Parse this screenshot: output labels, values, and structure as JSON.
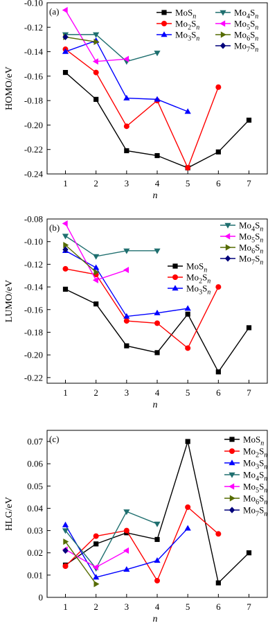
{
  "chart_data": [
    {
      "type": "line",
      "panel": "(a)",
      "ylabel": "HOMO/eV",
      "xlabel": "n",
      "ylim": [
        -0.24,
        -0.1
      ],
      "yticks": [
        -0.24,
        -0.22,
        -0.2,
        -0.18,
        -0.16,
        -0.14,
        -0.12,
        -0.1
      ],
      "xticks": [
        1,
        2,
        3,
        4,
        5,
        6,
        7
      ],
      "legend": "top-right",
      "series": [
        {
          "name": "MoSn",
          "label": "MoS",
          "sub": "n",
          "color": "#000000",
          "marker": "square",
          "x": [
            1,
            2,
            3,
            4,
            5,
            6,
            7
          ],
          "values": [
            -0.157,
            -0.179,
            -0.221,
            -0.225,
            -0.235,
            -0.222,
            -0.196
          ]
        },
        {
          "name": "Mo2Sn",
          "label": "Mo",
          "sub2": "2",
          "sub": "n",
          "color": "#ff0000",
          "marker": "circle",
          "x": [
            1,
            2,
            3,
            4,
            5,
            6
          ],
          "values": [
            -0.138,
            -0.157,
            -0.201,
            -0.18,
            -0.235,
            -0.169
          ]
        },
        {
          "name": "Mo3Sn",
          "label": "Mo",
          "sub2": "3",
          "sub": "n",
          "color": "#0000ff",
          "marker": "triangle-up",
          "x": [
            1,
            2,
            3,
            4,
            5
          ],
          "values": [
            -0.14,
            -0.131,
            -0.178,
            -0.179,
            -0.189
          ]
        },
        {
          "name": "Mo4Sn",
          "label": "Mo",
          "sub2": "4",
          "sub": "n",
          "color": "#1f6f6f",
          "marker": "triangle-down",
          "x": [
            1,
            2,
            3,
            4
          ],
          "values": [
            -0.126,
            -0.126,
            -0.148,
            -0.141
          ]
        },
        {
          "name": "Mo5Sn",
          "label": "Mo",
          "sub2": "5",
          "sub": "n",
          "color": "#ff00ff",
          "marker": "triangle-left",
          "x": [
            1,
            2,
            3
          ],
          "values": [
            -0.106,
            -0.148,
            -0.146
          ]
        },
        {
          "name": "Mo6Sn",
          "label": "Mo",
          "sub2": "6",
          "sub": "n",
          "color": "#556b00",
          "marker": "triangle-right",
          "x": [
            1,
            2
          ],
          "values": [
            -0.128,
            -0.132
          ]
        },
        {
          "name": "Mo7Sn",
          "label": "Mo",
          "sub2": "7",
          "sub": "n",
          "color": "#00007a",
          "marker": "diamond",
          "x": [
            1
          ],
          "values": [
            -0.128
          ]
        }
      ]
    },
    {
      "type": "line",
      "panel": "(b)",
      "ylabel": "LUMO/eV",
      "xlabel": "n",
      "ylim": [
        -0.225,
        -0.08
      ],
      "yticks": [
        -0.22,
        -0.2,
        -0.18,
        -0.16,
        -0.14,
        -0.12,
        -0.1,
        -0.08
      ],
      "xticks": [
        1,
        2,
        3,
        4,
        5,
        6,
        7
      ],
      "legend": "top-right and center",
      "series": [
        {
          "name": "MoSn",
          "label": "MoS",
          "sub": "n",
          "color": "#000000",
          "marker": "square",
          "x": [
            1,
            2,
            3,
            4,
            5,
            6,
            7
          ],
          "values": [
            -0.142,
            -0.155,
            -0.192,
            -0.198,
            -0.164,
            -0.215,
            -0.176
          ]
        },
        {
          "name": "Mo2Sn",
          "label": "Mo",
          "sub2": "2",
          "sub": "n",
          "color": "#ff0000",
          "marker": "circle",
          "x": [
            1,
            2,
            3,
            4,
            5,
            6
          ],
          "values": [
            -0.124,
            -0.129,
            -0.17,
            -0.172,
            -0.194,
            -0.14
          ]
        },
        {
          "name": "Mo3Sn",
          "label": "Mo",
          "sub2": "3",
          "sub": "n",
          "color": "#0000ff",
          "marker": "triangle-up",
          "x": [
            1,
            2,
            3,
            4,
            5
          ],
          "values": [
            -0.108,
            -0.123,
            -0.166,
            -0.163,
            -0.159
          ]
        },
        {
          "name": "Mo4Sn",
          "label": "Mo",
          "sub2": "4",
          "sub": "n",
          "color": "#1f6f6f",
          "marker": "triangle-down",
          "x": [
            1,
            2,
            3,
            4
          ],
          "values": [
            -0.095,
            -0.113,
            -0.108,
            -0.108
          ]
        },
        {
          "name": "Mo5Sn",
          "label": "Mo",
          "sub2": "5",
          "sub": "n",
          "color": "#ff00ff",
          "marker": "triangle-left",
          "x": [
            1,
            2,
            3
          ],
          "values": [
            -0.084,
            -0.134,
            -0.125
          ]
        },
        {
          "name": "Mo6Sn",
          "label": "Mo",
          "sub2": "6",
          "sub": "n",
          "color": "#556b00",
          "marker": "triangle-right",
          "x": [
            1,
            2
          ],
          "values": [
            -0.103,
            -0.127
          ]
        },
        {
          "name": "Mo7Sn",
          "label": "Mo",
          "sub2": "7",
          "sub": "n",
          "color": "#00007a",
          "marker": "diamond",
          "x": [
            1
          ],
          "values": [
            -0.107
          ]
        }
      ]
    },
    {
      "type": "line",
      "panel": "(c)",
      "ylabel": "HLG/eV",
      "xlabel": "n",
      "ylim": [
        0,
        0.075
      ],
      "yticks": [
        0,
        0.01,
        0.02,
        0.03,
        0.04,
        0.05,
        0.06,
        0.07
      ],
      "xticks": [
        1,
        2,
        3,
        4,
        5,
        6,
        7
      ],
      "legend": "top-right",
      "series": [
        {
          "name": "MoSn",
          "label": "MoS",
          "sub": "n",
          "color": "#000000",
          "marker": "square",
          "x": [
            1,
            2,
            3,
            4,
            5,
            6,
            7
          ],
          "values": [
            0.0145,
            0.024,
            0.029,
            0.026,
            0.07,
            0.0065,
            0.02
          ]
        },
        {
          "name": "Mo2Sn",
          "label": "Mo",
          "sub2": "2",
          "sub": "n",
          "color": "#ff0000",
          "marker": "circle",
          "x": [
            1,
            2,
            3,
            4,
            5,
            6
          ],
          "values": [
            0.014,
            0.0275,
            0.03,
            0.0075,
            0.0405,
            0.0285
          ]
        },
        {
          "name": "Mo3Sn",
          "label": "Mo",
          "sub2": "3",
          "sub": "n",
          "color": "#0000ff",
          "marker": "triangle-up",
          "x": [
            1,
            2,
            3,
            4,
            5
          ],
          "values": [
            0.0325,
            0.009,
            0.0125,
            0.0165,
            0.031
          ]
        },
        {
          "name": "Mo4Sn",
          "label": "Mo",
          "sub2": "4",
          "sub": "n",
          "color": "#1f6f6f",
          "marker": "triangle-down",
          "x": [
            1,
            2,
            3,
            4
          ],
          "values": [
            0.03,
            0.013,
            0.0385,
            0.033
          ]
        },
        {
          "name": "Mo5Sn",
          "label": "Mo",
          "sub2": "5",
          "sub": "n",
          "color": "#ff00ff",
          "marker": "triangle-left",
          "x": [
            1,
            2,
            3
          ],
          "values": [
            0.0215,
            0.0135,
            0.021
          ]
        },
        {
          "name": "Mo6Sn",
          "label": "Mo",
          "sub2": "6",
          "sub": "n",
          "color": "#556b00",
          "marker": "triangle-right",
          "x": [
            1,
            2
          ],
          "values": [
            0.025,
            0.006
          ]
        },
        {
          "name": "Mo7Sn",
          "label": "Mo",
          "sub2": "7",
          "sub": "n",
          "color": "#00007a",
          "marker": "diamond",
          "x": [
            1
          ],
          "values": [
            0.021
          ]
        }
      ]
    }
  ]
}
